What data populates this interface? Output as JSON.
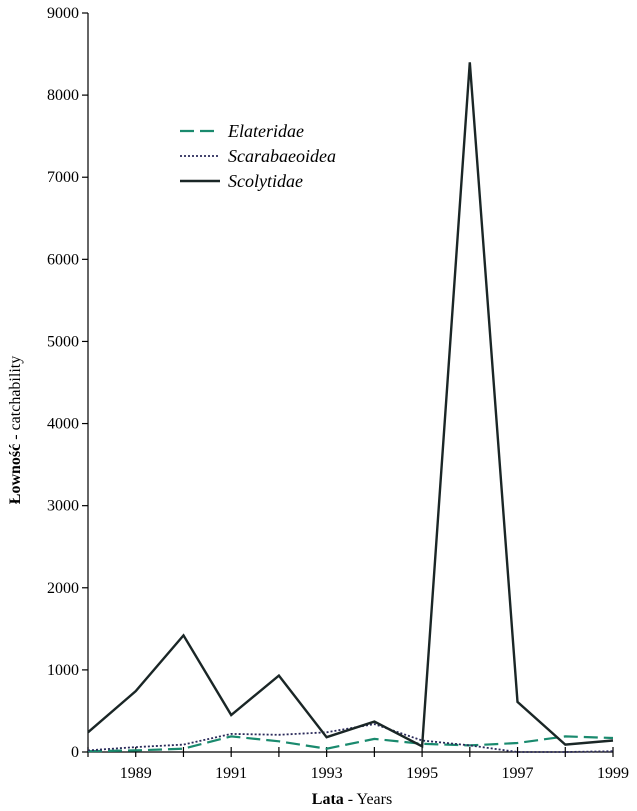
{
  "chart_data": {
    "type": "line",
    "xlabel_bold": "Lata",
    "xlabel_rest": " - Years",
    "ylabel_bold": "Łowność",
    "ylabel_rest": " - catchability",
    "xlim": [
      1988,
      1999
    ],
    "ylim": [
      0,
      9000
    ],
    "x_tick_values": [
      1989,
      1991,
      1993,
      1995,
      1997,
      1999
    ],
    "x_tick_labels": [
      "1989",
      "1991",
      "1993",
      "1995",
      "1997",
      "1999"
    ],
    "y_tick_values": [
      0,
      1000,
      2000,
      3000,
      4000,
      5000,
      6000,
      7000,
      8000,
      9000
    ],
    "y_tick_labels": [
      "0",
      "1000",
      "2000",
      "3000",
      "4000",
      "5000",
      "6000",
      "7000",
      "8000",
      "9000"
    ],
    "x": [
      1988,
      1989,
      1990,
      1991,
      1992,
      1993,
      1994,
      1995,
      1996,
      1997,
      1998,
      1999
    ],
    "legend_position": "upper-left",
    "series": [
      {
        "name": "Elateridae",
        "color": "#1a8a6e",
        "dash": "dashed",
        "values": [
          10,
          20,
          40,
          190,
          130,
          40,
          160,
          100,
          80,
          110,
          190,
          170
        ]
      },
      {
        "name": "Scarabaeoidea",
        "color": "#2a2a5a",
        "dash": "dotted",
        "values": [
          20,
          60,
          90,
          220,
          210,
          240,
          340,
          140,
          80,
          0,
          0,
          10
        ]
      },
      {
        "name": "Scolytidae",
        "color": "#1a2626",
        "dash": "solid",
        "values": [
          240,
          740,
          1420,
          450,
          930,
          180,
          370,
          70,
          8400,
          610,
          90,
          140
        ]
      }
    ]
  }
}
